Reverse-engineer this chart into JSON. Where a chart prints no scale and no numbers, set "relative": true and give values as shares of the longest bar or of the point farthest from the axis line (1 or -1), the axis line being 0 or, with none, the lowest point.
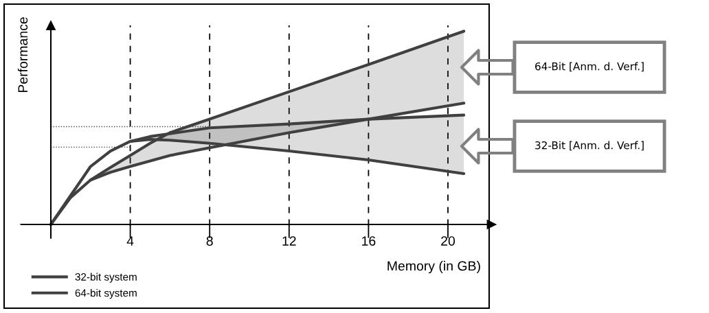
{
  "chart_data": {
    "type": "line",
    "relative": true,
    "xlabel": "Memory (in GB)",
    "ylabel": "Performance",
    "xlim": [
      -1.5,
      22.2
    ],
    "xticks": [
      4,
      8,
      12,
      16,
      20
    ],
    "grid": "x",
    "legend": "bottom left",
    "tick_labels": "x",
    "series": [
      {
        "name": "32-bit system",
        "color": "#404040",
        "x": [
          0,
          1,
          2,
          3,
          4,
          5,
          6,
          8,
          12,
          16,
          20.8
        ],
        "values": [
          0,
          0.15,
          0.3,
          0.38,
          0.43,
          0.44,
          0.436,
          0.42,
          0.38,
          0.334,
          0.263
        ]
      },
      {
        "color": "#404040",
        "x": [
          4,
          5,
          6,
          8,
          12,
          16,
          20.8
        ],
        "values": [
          0.43,
          0.455,
          0.47,
          0.5,
          0.52,
          0.545,
          0.566
        ],
        "lower": [
          0.43,
          0.44,
          0.436,
          0.42,
          0.38,
          0.334,
          0.263
        ],
        "upper": [
          0.43,
          0.455,
          0.47,
          0.5,
          0.52,
          0.545,
          0.566
        ]
      },
      {
        "name": "64-bit system",
        "color": "#404040",
        "x": [
          0,
          1,
          2,
          3,
          4,
          6,
          8,
          12,
          16,
          20.8
        ],
        "values": [
          0,
          0.14,
          0.23,
          0.27,
          0.3,
          0.357,
          0.397,
          0.475,
          0.545,
          0.628
        ]
      },
      {
        "color": "#404040",
        "x": [
          2,
          3,
          4,
          5,
          6,
          8,
          12,
          16,
          20.8
        ],
        "values": [
          0.23,
          0.295,
          0.357,
          0.42,
          0.475,
          0.545,
          0.687,
          0.828,
          1
        ],
        "lower": [
          0.23,
          0.27,
          0.3,
          0.328,
          0.357,
          0.397,
          0.475,
          0.545,
          0.628
        ],
        "upper": [
          0.23,
          0.295,
          0.357,
          0.42,
          0.475,
          0.545,
          0.687,
          0.828,
          1
        ]
      },
      {
        "color": "#404040",
        "line_style": "dotted",
        "x": [
          0,
          8
        ],
        "values": [
          0.506,
          0.506
        ]
      },
      {
        "color": "#404040",
        "line_style": "dotted",
        "x": [
          0,
          4
        ],
        "values": [
          0.4,
          0.4
        ]
      }
    ],
    "annotations": [
      "64-Bit [Anm. d. Verf.]",
      "32-Bit [Anm. d. Verf.]"
    ]
  }
}
